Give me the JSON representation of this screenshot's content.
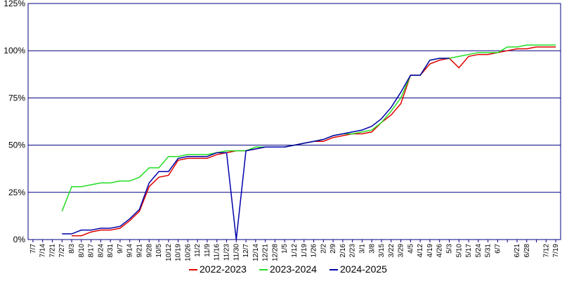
{
  "chart_data": {
    "type": "line",
    "categories": [
      "7/7",
      "7/14",
      "7/21",
      "7/27",
      "8/3",
      "8/10",
      "8/17",
      "8/24",
      "8/31",
      "9/7",
      "9/14",
      "9/21",
      "9/28",
      "10/5",
      "10/12",
      "10/19",
      "10/26",
      "11/2",
      "11/9",
      "11/16",
      "11/23",
      "11/30",
      "12/7",
      "12/14",
      "12/21",
      "12/28",
      "1/5",
      "1/12",
      "1/19",
      "1/26",
      "2/2",
      "2/9",
      "2/16",
      "2/23",
      "3/1",
      "3/8",
      "3/15",
      "3/22",
      "3/29",
      "4/5",
      "4/12",
      "4/19",
      "4/26",
      "5/3",
      "5/10",
      "5/17",
      "5/24",
      "5/31",
      "6/7",
      null,
      "6/21",
      "6/28",
      null,
      "7/12",
      "7/19"
    ],
    "series": [
      {
        "name": "2022-2023",
        "color": "#e00000",
        "values": [
          null,
          null,
          null,
          null,
          2,
          2,
          4,
          5,
          5,
          6,
          10,
          15,
          28,
          33,
          34,
          42,
          43,
          43,
          43,
          45,
          46,
          47,
          47,
          48,
          49,
          49,
          49,
          50,
          51,
          52,
          52,
          54,
          55,
          56,
          56,
          57,
          62,
          66,
          72,
          87,
          87,
          93,
          95,
          96,
          91,
          97,
          98,
          98,
          99,
          100,
          101,
          101,
          102,
          102,
          102
        ]
      },
      {
        "name": "2023-2024",
        "color": "#22dd22",
        "values": [
          null,
          null,
          null,
          15,
          28,
          28,
          29,
          30,
          30,
          31,
          31,
          33,
          38,
          38,
          44,
          44,
          45,
          45,
          45,
          46,
          47,
          47,
          47,
          49,
          49,
          49,
          49,
          50,
          51,
          52,
          53,
          55,
          56,
          56,
          57,
          58,
          62,
          68,
          75,
          87,
          87,
          95,
          96,
          96,
          97,
          98,
          99,
          99,
          99,
          102,
          102,
          103,
          103,
          103,
          103
        ]
      },
      {
        "name": "2024-2025",
        "color": "#0000aa",
        "values": [
          null,
          null,
          null,
          3,
          3,
          5,
          5,
          6,
          6,
          7,
          11,
          16,
          30,
          36,
          36,
          43,
          44,
          44,
          44,
          46,
          46,
          0,
          47,
          48,
          49,
          49,
          49,
          50,
          51,
          52,
          53,
          55,
          56,
          57,
          58,
          60,
          64,
          70,
          78,
          87,
          87,
          95,
          96,
          96,
          null,
          null,
          null,
          null,
          null,
          null,
          null,
          null,
          null,
          null,
          null
        ]
      }
    ],
    "ylim": [
      0,
      125
    ],
    "yticks": [
      {
        "value": 0,
        "label": "0%"
      },
      {
        "value": 25,
        "label": "25%"
      },
      {
        "value": 50,
        "label": "50%"
      },
      {
        "value": 75,
        "label": "75%"
      },
      {
        "value": 100,
        "label": "100%"
      },
      {
        "value": 125,
        "label": "125%"
      }
    ],
    "grid": true,
    "grid_color": "#000080",
    "legend": "bottom"
  }
}
